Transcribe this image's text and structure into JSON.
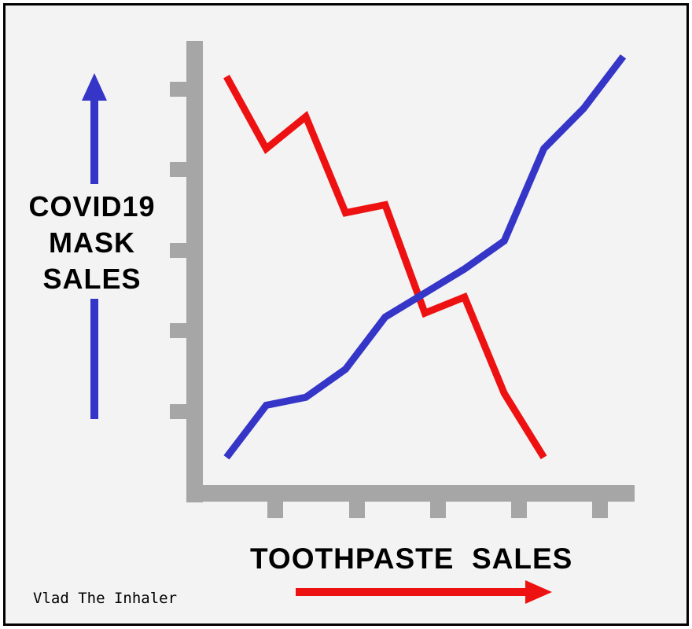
{
  "credit": "Vlad The Inhaler",
  "chart_data": {
    "type": "line",
    "ylabel_lines": [
      "COVID19",
      "MASK",
      "SALES"
    ],
    "xlabel": "TOOTHPASTE  SALES",
    "grid": false,
    "x": [
      0,
      0.5,
      1,
      1.5,
      2,
      2.5,
      3,
      3.5,
      4,
      4.5,
      5,
      5.5
    ],
    "xlim": [
      0,
      5.5
    ],
    "ylim": [
      0,
      5
    ],
    "series": [
      {
        "color": "#ee1111",
        "points": [
          [
            0,
            4.85
          ],
          [
            0.5,
            3.95
          ],
          [
            1,
            4.35
          ],
          [
            1.5,
            3.15
          ],
          [
            2,
            3.25
          ],
          [
            2.5,
            1.9
          ],
          [
            3,
            2.1
          ],
          [
            3.5,
            0.9
          ],
          [
            4,
            0.1
          ]
        ]
      },
      {
        "color": "#3535c8",
        "points": [
          [
            0,
            0.1
          ],
          [
            0.5,
            0.75
          ],
          [
            1,
            0.85
          ],
          [
            1.5,
            1.2
          ],
          [
            2,
            1.85
          ],
          [
            2.5,
            2.15
          ],
          [
            3,
            2.45
          ],
          [
            3.5,
            2.8
          ],
          [
            4,
            3.95
          ],
          [
            4.5,
            4.45
          ],
          [
            5,
            5.1
          ]
        ]
      }
    ],
    "colors": {
      "axis": "#a6a6a6",
      "y_arrow": "#3535c8",
      "x_arrow": "#ee1111"
    }
  }
}
